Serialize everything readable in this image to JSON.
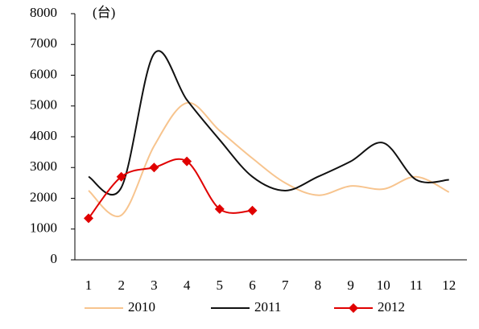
{
  "chart_data": {
    "type": "line",
    "unit_label": "(台)",
    "categories": [
      "1",
      "2",
      "3",
      "4",
      "5",
      "6",
      "7",
      "8",
      "9",
      "10",
      "11",
      "12"
    ],
    "series": [
      {
        "name": "2010",
        "color": "#f7c48e",
        "marker": "none",
        "values": [
          2250,
          1450,
          3700,
          5100,
          4200,
          3300,
          2500,
          2100,
          2400,
          2300,
          2700,
          2200
        ]
      },
      {
        "name": "2011",
        "color": "#111111",
        "marker": "none",
        "values": [
          2700,
          2350,
          6700,
          5200,
          3900,
          2700,
          2250,
          2700,
          3200,
          3800,
          2600,
          2600
        ]
      },
      {
        "name": "2012",
        "color": "#e00000",
        "marker": "diamond",
        "values": [
          1350,
          2700,
          3000,
          3200,
          1650,
          1600,
          null,
          null,
          null,
          null,
          null,
          null
        ]
      }
    ],
    "ylim": [
      0,
      8000
    ],
    "yticks": [
      0,
      1000,
      2000,
      3000,
      4000,
      5000,
      6000,
      7000,
      8000
    ],
    "grid": false,
    "legend": "bottom"
  }
}
